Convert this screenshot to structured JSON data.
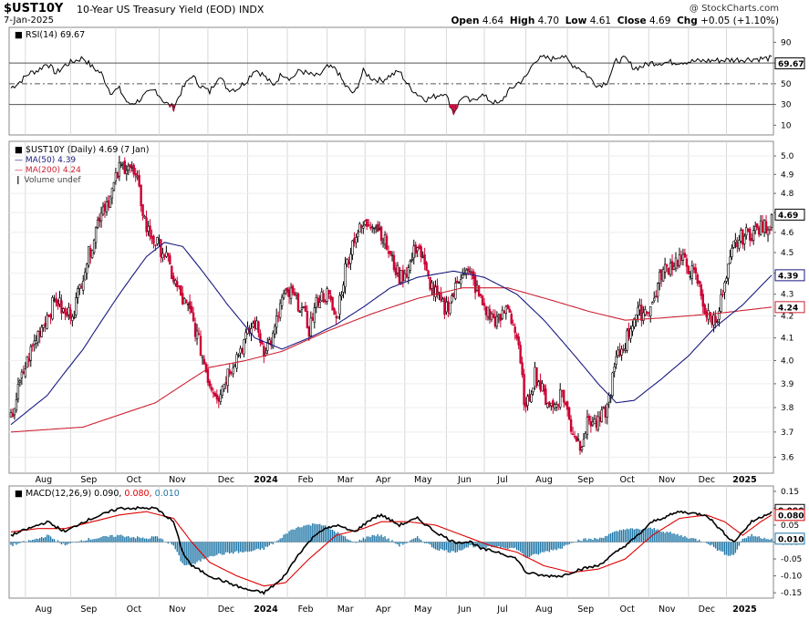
{
  "header": {
    "symbol": "$UST10Y",
    "name": "10-Year US Treasury Yield (EOD)",
    "exchange": "INDX",
    "date": "7-Jan-2025",
    "source": "@ StockCharts.com",
    "open_label": "Open",
    "open": "4.64",
    "high_label": "High",
    "high": "4.70",
    "low_label": "Low",
    "low": "4.61",
    "close_label": "Close",
    "close": "4.69",
    "chg_label": "Chg",
    "chg": "+0.05 (+1.10%)"
  },
  "colors": {
    "up": "#000000",
    "down": "#cc0033",
    "ma50": "#1a1a80",
    "ma200": "#cc2233",
    "macd": "#000000",
    "signal": "#dd0000",
    "hist": "#1f77a8",
    "grid": "#d8d8d8"
  },
  "x_labels": [
    "Aug",
    "Sep",
    "Oct",
    "Nov",
    "Dec",
    "2024",
    "Feb",
    "Mar",
    "Apr",
    "May",
    "Jun",
    "Jul",
    "Aug",
    "Sep",
    "Oct",
    "Nov",
    "Dec",
    "2025"
  ],
  "x_bold": [
    "2024",
    "2025"
  ],
  "rsi": {
    "legend": "RSI(14) 69.67",
    "current": "69.67",
    "ticks": [
      "90",
      "70",
      "50",
      "30",
      "10"
    ],
    "levels": [
      70,
      50,
      30
    ],
    "anchors": [
      [
        0,
        46
      ],
      [
        5,
        52
      ],
      [
        10,
        60
      ],
      [
        15,
        63
      ],
      [
        20,
        70
      ],
      [
        25,
        60
      ],
      [
        30,
        68
      ],
      [
        35,
        72
      ],
      [
        40,
        75
      ],
      [
        45,
        66
      ],
      [
        50,
        60
      ],
      [
        55,
        42
      ],
      [
        60,
        45
      ],
      [
        65,
        30
      ],
      [
        70,
        33
      ],
      [
        75,
        40
      ],
      [
        80,
        44
      ],
      [
        85,
        32
      ],
      [
        90,
        27
      ],
      [
        95,
        45
      ],
      [
        100,
        58
      ],
      [
        105,
        48
      ],
      [
        110,
        42
      ],
      [
        115,
        58
      ],
      [
        120,
        45
      ],
      [
        125,
        45
      ],
      [
        130,
        52
      ],
      [
        135,
        64
      ],
      [
        140,
        58
      ],
      [
        145,
        48
      ],
      [
        150,
        60
      ],
      [
        155,
        55
      ],
      [
        160,
        63
      ],
      [
        165,
        59
      ],
      [
        170,
        57
      ],
      [
        175,
        66
      ],
      [
        180,
        64
      ],
      [
        185,
        48
      ],
      [
        190,
        40
      ],
      [
        195,
        62
      ],
      [
        200,
        55
      ],
      [
        205,
        53
      ],
      [
        210,
        58
      ],
      [
        215,
        62
      ],
      [
        220,
        48
      ],
      [
        225,
        40
      ],
      [
        230,
        35
      ],
      [
        235,
        38
      ],
      [
        240,
        42
      ],
      [
        245,
        22
      ],
      [
        250,
        38
      ],
      [
        255,
        32
      ],
      [
        260,
        40
      ],
      [
        265,
        34
      ],
      [
        270,
        30
      ],
      [
        275,
        42
      ],
      [
        280,
        50
      ],
      [
        285,
        56
      ],
      [
        290,
        73
      ],
      [
        295,
        75
      ],
      [
        300,
        74
      ],
      [
        305,
        78
      ],
      [
        310,
        69
      ],
      [
        315,
        65
      ],
      [
        320,
        56
      ],
      [
        325,
        48
      ],
      [
        330,
        52
      ],
      [
        335,
        72
      ],
      [
        340,
        74
      ],
      [
        345,
        65
      ],
      [
        350,
        67
      ],
      [
        354,
        70
      ]
    ]
  },
  "price": {
    "legend": "$UST10Y (Daily) 4.69 (7 Jan)",
    "ma50_legend": "MA(50) 4.39",
    "ma200_legend": "MA(200) 4.24",
    "volume_legend": "Volume undef",
    "current": "4.69",
    "ma50_value": "4.39",
    "ma200_value": "4.24",
    "ticks": [
      "5.0",
      "4.9",
      "4.8",
      "4.7",
      "4.6",
      "4.5",
      "4.4",
      "4.3",
      "4.2",
      "4.1",
      "4.0",
      "3.9",
      "3.8",
      "3.7",
      "3.6"
    ],
    "log_scale": true,
    "close_anchors": [
      [
        0,
        3.75
      ],
      [
        5,
        3.9
      ],
      [
        10,
        4.02
      ],
      [
        15,
        4.12
      ],
      [
        20,
        4.2
      ],
      [
        25,
        4.28
      ],
      [
        30,
        4.2
      ],
      [
        35,
        4.23
      ],
      [
        40,
        4.4
      ],
      [
        45,
        4.55
      ],
      [
        50,
        4.72
      ],
      [
        55,
        4.78
      ],
      [
        60,
        4.93
      ],
      [
        65,
        4.96
      ],
      [
        70,
        4.85
      ],
      [
        75,
        4.62
      ],
      [
        80,
        4.55
      ],
      [
        85,
        4.5
      ],
      [
        90,
        4.37
      ],
      [
        95,
        4.27
      ],
      [
        100,
        4.2
      ],
      [
        105,
        4.05
      ],
      [
        110,
        3.9
      ],
      [
        115,
        3.85
      ],
      [
        120,
        3.95
      ],
      [
        125,
        4.02
      ],
      [
        130,
        4.1
      ],
      [
        135,
        4.17
      ],
      [
        140,
        4.05
      ],
      [
        145,
        4.1
      ],
      [
        150,
        4.28
      ],
      [
        155,
        4.3
      ],
      [
        160,
        4.25
      ],
      [
        165,
        4.14
      ],
      [
        170,
        4.28
      ],
      [
        175,
        4.3
      ],
      [
        180,
        4.18
      ],
      [
        185,
        4.42
      ],
      [
        190,
        4.58
      ],
      [
        195,
        4.63
      ],
      [
        200,
        4.66
      ],
      [
        205,
        4.6
      ],
      [
        210,
        4.48
      ],
      [
        215,
        4.38
      ],
      [
        220,
        4.42
      ],
      [
        225,
        4.55
      ],
      [
        230,
        4.39
      ],
      [
        235,
        4.3
      ],
      [
        240,
        4.23
      ],
      [
        245,
        4.3
      ],
      [
        250,
        4.42
      ],
      [
        255,
        4.38
      ],
      [
        260,
        4.27
      ],
      [
        265,
        4.2
      ],
      [
        270,
        4.17
      ],
      [
        275,
        4.25
      ],
      [
        280,
        4.1
      ],
      [
        285,
        3.78
      ],
      [
        290,
        3.95
      ],
      [
        295,
        3.85
      ],
      [
        300,
        3.8
      ],
      [
        305,
        3.87
      ],
      [
        310,
        3.72
      ],
      [
        315,
        3.65
      ],
      [
        320,
        3.75
      ],
      [
        325,
        3.73
      ],
      [
        330,
        3.8
      ],
      [
        335,
        4.0
      ],
      [
        340,
        4.08
      ],
      [
        345,
        4.2
      ],
      [
        350,
        4.22
      ],
      [
        355,
        4.25
      ],
      [
        360,
        4.4
      ],
      [
        365,
        4.44
      ],
      [
        370,
        4.47
      ],
      [
        375,
        4.43
      ],
      [
        380,
        4.36
      ],
      [
        385,
        4.2
      ],
      [
        390,
        4.18
      ],
      [
        395,
        4.33
      ],
      [
        400,
        4.53
      ],
      [
        405,
        4.58
      ],
      [
        410,
        4.6
      ],
      [
        415,
        4.62
      ],
      [
        420,
        4.64
      ],
      [
        421,
        4.69
      ]
    ],
    "ma50_anchors": [
      [
        0,
        3.73
      ],
      [
        20,
        3.85
      ],
      [
        40,
        4.05
      ],
      [
        60,
        4.3
      ],
      [
        75,
        4.48
      ],
      [
        85,
        4.55
      ],
      [
        95,
        4.53
      ],
      [
        105,
        4.42
      ],
      [
        120,
        4.25
      ],
      [
        135,
        4.1
      ],
      [
        150,
        4.05
      ],
      [
        165,
        4.1
      ],
      [
        180,
        4.16
      ],
      [
        195,
        4.24
      ],
      [
        210,
        4.33
      ],
      [
        225,
        4.38
      ],
      [
        245,
        4.41
      ],
      [
        262,
        4.38
      ],
      [
        280,
        4.3
      ],
      [
        295,
        4.18
      ],
      [
        310,
        4.04
      ],
      [
        325,
        3.9
      ],
      [
        335,
        3.82
      ],
      [
        345,
        3.83
      ],
      [
        360,
        3.92
      ],
      [
        375,
        4.02
      ],
      [
        390,
        4.15
      ],
      [
        405,
        4.25
      ],
      [
        421,
        4.39
      ]
    ],
    "ma200_anchors": [
      [
        0,
        3.7
      ],
      [
        40,
        3.72
      ],
      [
        80,
        3.82
      ],
      [
        110,
        3.97
      ],
      [
        130,
        4.0
      ],
      [
        150,
        4.04
      ],
      [
        175,
        4.13
      ],
      [
        200,
        4.21
      ],
      [
        225,
        4.28
      ],
      [
        250,
        4.33
      ],
      [
        275,
        4.33
      ],
      [
        300,
        4.27
      ],
      [
        320,
        4.22
      ],
      [
        340,
        4.18
      ],
      [
        360,
        4.19
      ],
      [
        390,
        4.21
      ],
      [
        421,
        4.24
      ]
    ]
  },
  "macd": {
    "legend_prefix": "MACD(12,26,9)",
    "macd_value": "0.090",
    "signal_value": "0.080",
    "hist_value": "0.010",
    "ticks": [
      "0.15",
      "0.10",
      "0.05",
      "0.00",
      "-0.05",
      "-0.10",
      "-0.15"
    ],
    "macd_anchors": [
      [
        0,
        0.02
      ],
      [
        10,
        0.04
      ],
      [
        20,
        0.06
      ],
      [
        30,
        0.03
      ],
      [
        40,
        0.06
      ],
      [
        50,
        0.08
      ],
      [
        60,
        0.1
      ],
      [
        70,
        0.1
      ],
      [
        80,
        0.1
      ],
      [
        90,
        0.06
      ],
      [
        95,
        -0.03
      ],
      [
        100,
        -0.07
      ],
      [
        110,
        -0.1
      ],
      [
        120,
        -0.12
      ],
      [
        130,
        -0.14
      ],
      [
        140,
        -0.15
      ],
      [
        150,
        -0.11
      ],
      [
        160,
        -0.03
      ],
      [
        170,
        0.03
      ],
      [
        180,
        0.05
      ],
      [
        190,
        0.03
      ],
      [
        200,
        0.07
      ],
      [
        205,
        0.08
      ],
      [
        215,
        0.05
      ],
      [
        225,
        0.07
      ],
      [
        235,
        0.03
      ],
      [
        245,
        0.0
      ],
      [
        255,
        0.0
      ],
      [
        260,
        -0.02
      ],
      [
        270,
        -0.03
      ],
      [
        280,
        -0.05
      ],
      [
        285,
        -0.09
      ],
      [
        295,
        -0.1
      ],
      [
        305,
        -0.1
      ],
      [
        315,
        -0.08
      ],
      [
        325,
        -0.07
      ],
      [
        335,
        -0.03
      ],
      [
        345,
        0.01
      ],
      [
        355,
        0.06
      ],
      [
        370,
        0.09
      ],
      [
        385,
        0.08
      ],
      [
        392,
        0.04
      ],
      [
        400,
        0.0
      ],
      [
        410,
        0.06
      ],
      [
        421,
        0.09
      ]
    ],
    "signal_anchors": [
      [
        0,
        0.03
      ],
      [
        15,
        0.04
      ],
      [
        30,
        0.04
      ],
      [
        45,
        0.06
      ],
      [
        60,
        0.08
      ],
      [
        75,
        0.09
      ],
      [
        90,
        0.07
      ],
      [
        100,
        0.0
      ],
      [
        110,
        -0.06
      ],
      [
        125,
        -0.1
      ],
      [
        140,
        -0.13
      ],
      [
        152,
        -0.12
      ],
      [
        165,
        -0.05
      ],
      [
        180,
        0.02
      ],
      [
        195,
        0.04
      ],
      [
        205,
        0.06
      ],
      [
        220,
        0.06
      ],
      [
        235,
        0.05
      ],
      [
        250,
        0.02
      ],
      [
        265,
        -0.01
      ],
      [
        280,
        -0.03
      ],
      [
        295,
        -0.07
      ],
      [
        310,
        -0.09
      ],
      [
        325,
        -0.08
      ],
      [
        340,
        -0.05
      ],
      [
        355,
        0.02
      ],
      [
        370,
        0.07
      ],
      [
        385,
        0.08
      ],
      [
        395,
        0.06
      ],
      [
        405,
        0.02
      ],
      [
        415,
        0.06
      ],
      [
        421,
        0.08
      ]
    ]
  }
}
